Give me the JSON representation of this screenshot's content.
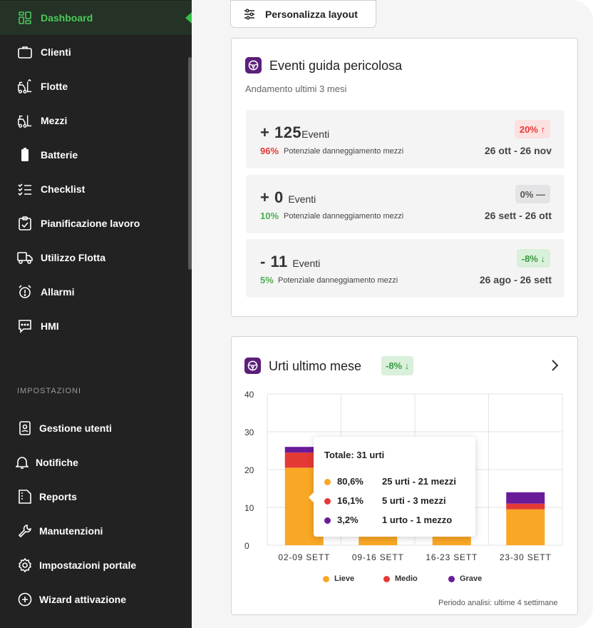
{
  "sidebar": {
    "items": [
      {
        "label": "Dashboard",
        "icon": "dashboard-grid-icon",
        "active": true
      },
      {
        "label": "Clienti",
        "icon": "briefcase-icon"
      },
      {
        "label": "Flotte",
        "icon": "forklift-fleet-icon"
      },
      {
        "label": "Mezzi",
        "icon": "forklift-icon"
      },
      {
        "label": "Batterie",
        "icon": "battery-icon"
      },
      {
        "label": "Checklist",
        "icon": "checklist-icon"
      },
      {
        "label": "Pianificazione lavoro",
        "icon": "clipboard-check-icon"
      },
      {
        "label": "Utilizzo Flotta",
        "icon": "truck-icon"
      },
      {
        "label": "Allarmi",
        "icon": "alarm-clock-icon"
      },
      {
        "label": "HMI",
        "icon": "message-icon"
      }
    ],
    "settings_label": "IMPOSTAZIONI",
    "settings_items": [
      {
        "label": "Gestione utenti",
        "icon": "user-badge-icon"
      },
      {
        "label": "Notifiche",
        "icon": "bell-icon"
      },
      {
        "label": "Reports",
        "icon": "report-icon"
      },
      {
        "label": "Manutenzioni",
        "icon": "wrench-icon"
      },
      {
        "label": "Impostazioni portale",
        "icon": "gear-icon"
      },
      {
        "label": "Wizard attivazione",
        "icon": "plus-circle-icon"
      }
    ],
    "active_color": "#4cc85a"
  },
  "toolbar": {
    "layout_button": "Personalizza layout"
  },
  "events_card": {
    "title": "Eventi guida pericolosa",
    "subtitle": "Andamento ultimi 3 mesi",
    "rows": [
      {
        "count": "+ 125",
        "unit": "Eventi",
        "pct": "96%",
        "pct_color": "red",
        "pct_label": "Potenziale danneggiamento mezzi",
        "trend": "20%",
        "trend_arrow": "↑",
        "trend_style": "red",
        "range": "26 ott - 26 nov"
      },
      {
        "count": "+ 0",
        "unit": "Eventi",
        "pct": "10%",
        "pct_color": "green",
        "pct_label": "Potenziale danneggiamento mezzi",
        "trend": "0%",
        "trend_arrow": "—",
        "trend_style": "gray",
        "range": "26 sett - 26 ott"
      },
      {
        "count": "- 11",
        "unit": "Eventi",
        "pct": "5%",
        "pct_color": "green",
        "pct_label": "Potenziale danneggiamento mezzi",
        "trend": "-8%",
        "trend_arrow": "↓",
        "trend_style": "green",
        "range": "26 ago - 26 sett"
      }
    ]
  },
  "urti_card": {
    "title": "Urti ultimo mese",
    "trend": "-8%",
    "trend_arrow": "↓",
    "footnote": "Periodo analisi: ultime 4 settimane",
    "tooltip": {
      "title": "Totale: 31 urti",
      "rows": [
        {
          "pct": "80,6%",
          "detail": "25 urti - 21 mezzi",
          "color": "#f9a825"
        },
        {
          "pct": "16,1%",
          "detail": "5 urti - 3 mezzi",
          "color": "#e53935"
        },
        {
          "pct": "3,2%",
          "detail": "1 urto - 1 mezzo",
          "color": "#6a1b9a"
        }
      ]
    }
  },
  "chart_data": {
    "type": "bar",
    "stacked": true,
    "categories": [
      "02-09 SETT",
      "09-16 SETT",
      "16-23 SETT",
      "23-30 SETT"
    ],
    "series": [
      {
        "name": "Lieve",
        "color": "#f9a825",
        "values": [
          20.5,
          5,
          5,
          9.5
        ]
      },
      {
        "name": "Medio",
        "color": "#e53935",
        "values": [
          4,
          0,
          0,
          1.5
        ]
      },
      {
        "name": "Grave",
        "color": "#6a1b9a",
        "values": [
          1.5,
          0,
          0,
          3
        ]
      }
    ],
    "yticks": [
      0,
      10,
      20,
      30,
      40
    ],
    "ylim": [
      0,
      40
    ],
    "grid": true,
    "legend_position": "bottom-center"
  }
}
